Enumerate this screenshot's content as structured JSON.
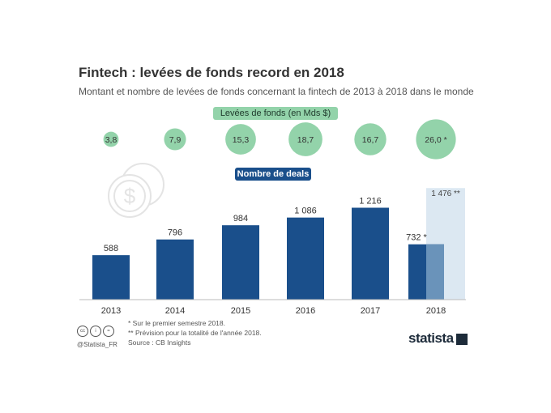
{
  "title": "Fintech : levées de fonds record en 2018",
  "subtitle": "Montant et nombre de levées de fonds concernant la fintech de 2013 à 2018 dans le monde",
  "funds_label": "Levées de fonds (en Mds $)",
  "deals_label": "Nombre de deals",
  "chart_data": {
    "type": "bar",
    "title": "Fintech : levées de fonds record en 2018",
    "categories": [
      "2013",
      "2014",
      "2015",
      "2016",
      "2017",
      "2018"
    ],
    "series": [
      {
        "name": "Nombre de deals",
        "values": [
          588,
          796,
          984,
          1086,
          1216,
          732
        ],
        "labels": [
          "588",
          "796",
          "984",
          "1 086",
          "1 216",
          "732 *"
        ],
        "color": "#1a4f8b"
      },
      {
        "name": "Prévision 2018",
        "values": [
          null,
          null,
          null,
          null,
          null,
          1476
        ],
        "labels": [
          "",
          "",
          "",
          "",
          "",
          "1 476 **"
        ],
        "color": "#dce8f2"
      }
    ],
    "bubbles": {
      "name": "Levées de fonds (en Mds $)",
      "values": [
        3.8,
        7.9,
        15.3,
        18.7,
        16.7,
        26.0
      ],
      "labels": [
        "3,8",
        "7,9",
        "15,3",
        "18,7",
        "16,7",
        "26,0 *"
      ],
      "color": "#93d3aa"
    },
    "ylim": [
      0,
      1500
    ],
    "grid": false
  },
  "footnotes": [
    "*  Sur le premier semestre 2018.",
    "** Prévision pour la totalité de l'année 2018.",
    "Source : CB Insights"
  ],
  "handle": "@Statista_FR",
  "logo": "statista",
  "license_icons": [
    "cc-icon",
    "by-icon",
    "nd-icon"
  ]
}
